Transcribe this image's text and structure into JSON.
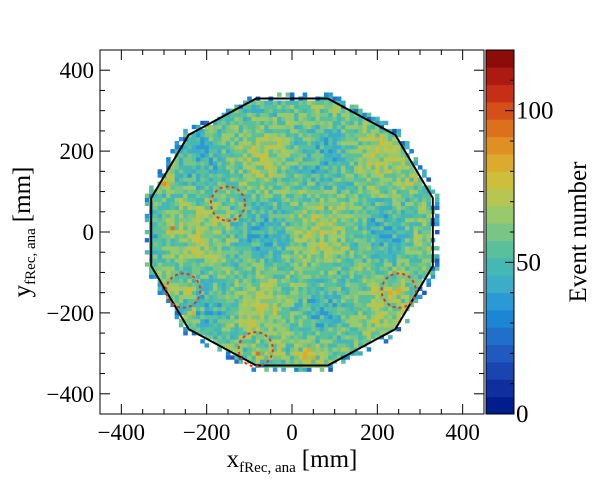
{
  "chart_data": {
    "type": "heatmap",
    "title": "",
    "xlabel": {
      "main": "x",
      "sub": "fRec, ana",
      "unit": "[mm]"
    },
    "ylabel": {
      "main": "y",
      "sub": "fRec, ana",
      "unit": "[mm]"
    },
    "xlim": [
      -450,
      450
    ],
    "ylim": [
      -450,
      450
    ],
    "x_ticks": [
      -400,
      -200,
      0,
      200,
      400
    ],
    "y_ticks": [
      -400,
      -200,
      0,
      200,
      400
    ],
    "x_tick_labels": [
      "−400",
      "−200",
      "0",
      "200",
      "400"
    ],
    "y_tick_labels": [
      "−400",
      "−200",
      "0",
      "200",
      "400"
    ],
    "colorbar": {
      "label": "Event number",
      "range": [
        0,
        120
      ],
      "ticks": [
        0,
        50,
        100
      ],
      "tick_labels": [
        "0",
        "50",
        "100"
      ],
      "colors": [
        "#001d8e",
        "#0f2e9f",
        "#1a45b0",
        "#2059c0",
        "#1f6fcb",
        "#1b86d4",
        "#2b9ad4",
        "#3cacc8",
        "#45b8b4",
        "#58c09c",
        "#78c585",
        "#98c96c",
        "#b5c752",
        "#cdbe3c",
        "#dcaa2d",
        "#e08f22",
        "#dd701c",
        "#d54f18",
        "#c52f15",
        "#ad1a12",
        "#8c0c0a"
      ]
    },
    "bin_size_mm": 10,
    "summary": "2D occupancy histogram, counts mostly 40-80 inside a 12-sided polygon of radius about 330 mm, hot spots at the polygon corners",
    "polygon_vertices": [
      [
        -84,
        330
      ],
      [
        84,
        330
      ],
      [
        242,
        240
      ],
      [
        330,
        84
      ],
      [
        330,
        -84
      ],
      [
        242,
        -240
      ],
      [
        84,
        -330
      ],
      [
        -84,
        -330
      ],
      [
        -242,
        -240
      ],
      [
        -330,
        -84
      ],
      [
        -330,
        84
      ],
      [
        -242,
        240
      ]
    ],
    "polygon_color": "#000000",
    "dashed_circles": [
      {
        "x": -150,
        "y": 70,
        "r": 40
      },
      {
        "x": -255,
        "y": -145,
        "r": 40
      },
      {
        "x": -85,
        "y": -290,
        "r": 40
      },
      {
        "x": 250,
        "y": -145,
        "r": 40
      }
    ],
    "circle_color": "#e8321c"
  }
}
